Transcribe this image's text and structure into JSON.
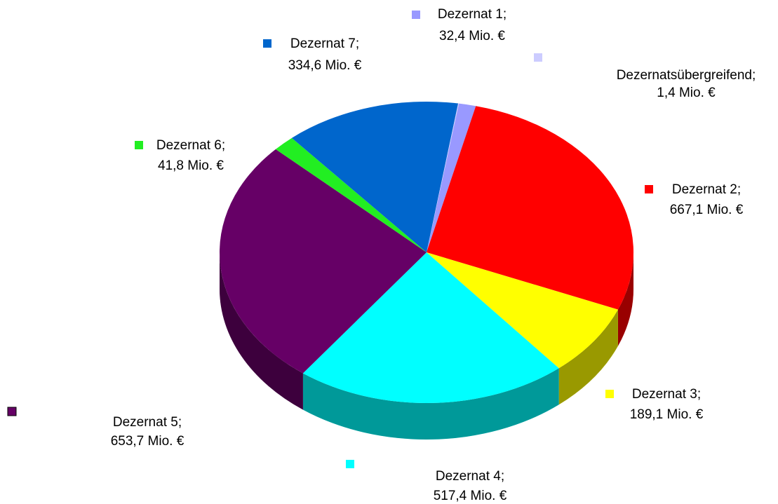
{
  "chart_data": {
    "type": "pie",
    "categories": [
      "Dezernat 1;",
      "Dezernat 2;",
      "Dezernat 3;",
      "Dezernat 4;",
      "Dezernat 5;",
      "Dezernat 6;",
      "Dezernat 7;",
      "Dezernatsübergreifend;"
    ],
    "values": [
      32.4,
      667.1,
      189.1,
      517.4,
      653.7,
      41.8,
      334.6,
      1.4
    ],
    "value_labels": [
      "32,4 Mio. €",
      "667,1 Mio. €",
      "189,1 Mio. €",
      "517,4 Mio. €",
      "653,7 Mio. €",
      "41,8 Mio. €",
      "334,6 Mio. €",
      "1,4 Mio. €"
    ],
    "colors": [
      "#9999ff",
      "#ff0000",
      "#ffff00",
      "#00ffff",
      "#660066",
      "#22ee22",
      "#0066cc",
      "#ccccff"
    ]
  }
}
